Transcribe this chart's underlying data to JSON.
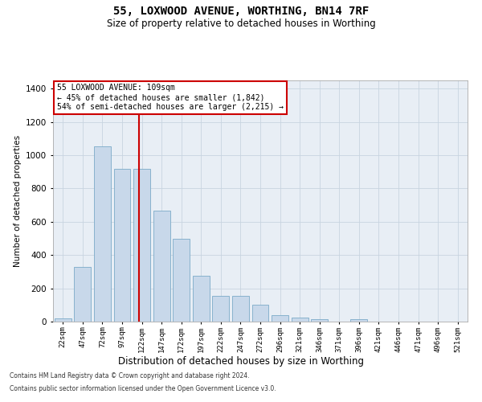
{
  "title": "55, LOXWOOD AVENUE, WORTHING, BN14 7RF",
  "subtitle": "Size of property relative to detached houses in Worthing",
  "xlabel": "Distribution of detached houses by size in Worthing",
  "ylabel": "Number of detached properties",
  "footnote1": "Contains HM Land Registry data © Crown copyright and database right 2024.",
  "footnote2": "Contains public sector information licensed under the Open Government Licence v3.0.",
  "categories": [
    "22sqm",
    "47sqm",
    "72sqm",
    "97sqm",
    "122sqm",
    "147sqm",
    "172sqm",
    "197sqm",
    "222sqm",
    "247sqm",
    "272sqm",
    "296sqm",
    "321sqm",
    "346sqm",
    "371sqm",
    "396sqm",
    "421sqm",
    "446sqm",
    "471sqm",
    "496sqm",
    "521sqm"
  ],
  "values": [
    20,
    330,
    1055,
    920,
    920,
    665,
    500,
    275,
    155,
    155,
    100,
    37,
    22,
    13,
    0,
    13,
    0,
    0,
    0,
    0,
    0
  ],
  "bar_color": "#c8d8ea",
  "bar_edgecolor": "#7baac8",
  "redline_x": 3.85,
  "redline_label": "55 LOXWOOD AVENUE: 109sqm",
  "annotation_line1": "← 45% of detached houses are smaller (1,842)",
  "annotation_line2": "54% of semi-detached houses are larger (2,215) →",
  "annotation_box_color": "#ffffff",
  "annotation_box_edgecolor": "#cc0000",
  "ylim": [
    0,
    1450
  ],
  "yticks": [
    0,
    200,
    400,
    600,
    800,
    1000,
    1200,
    1400
  ],
  "grid_color": "#c8d4e0",
  "bg_color": "#e8eef5"
}
